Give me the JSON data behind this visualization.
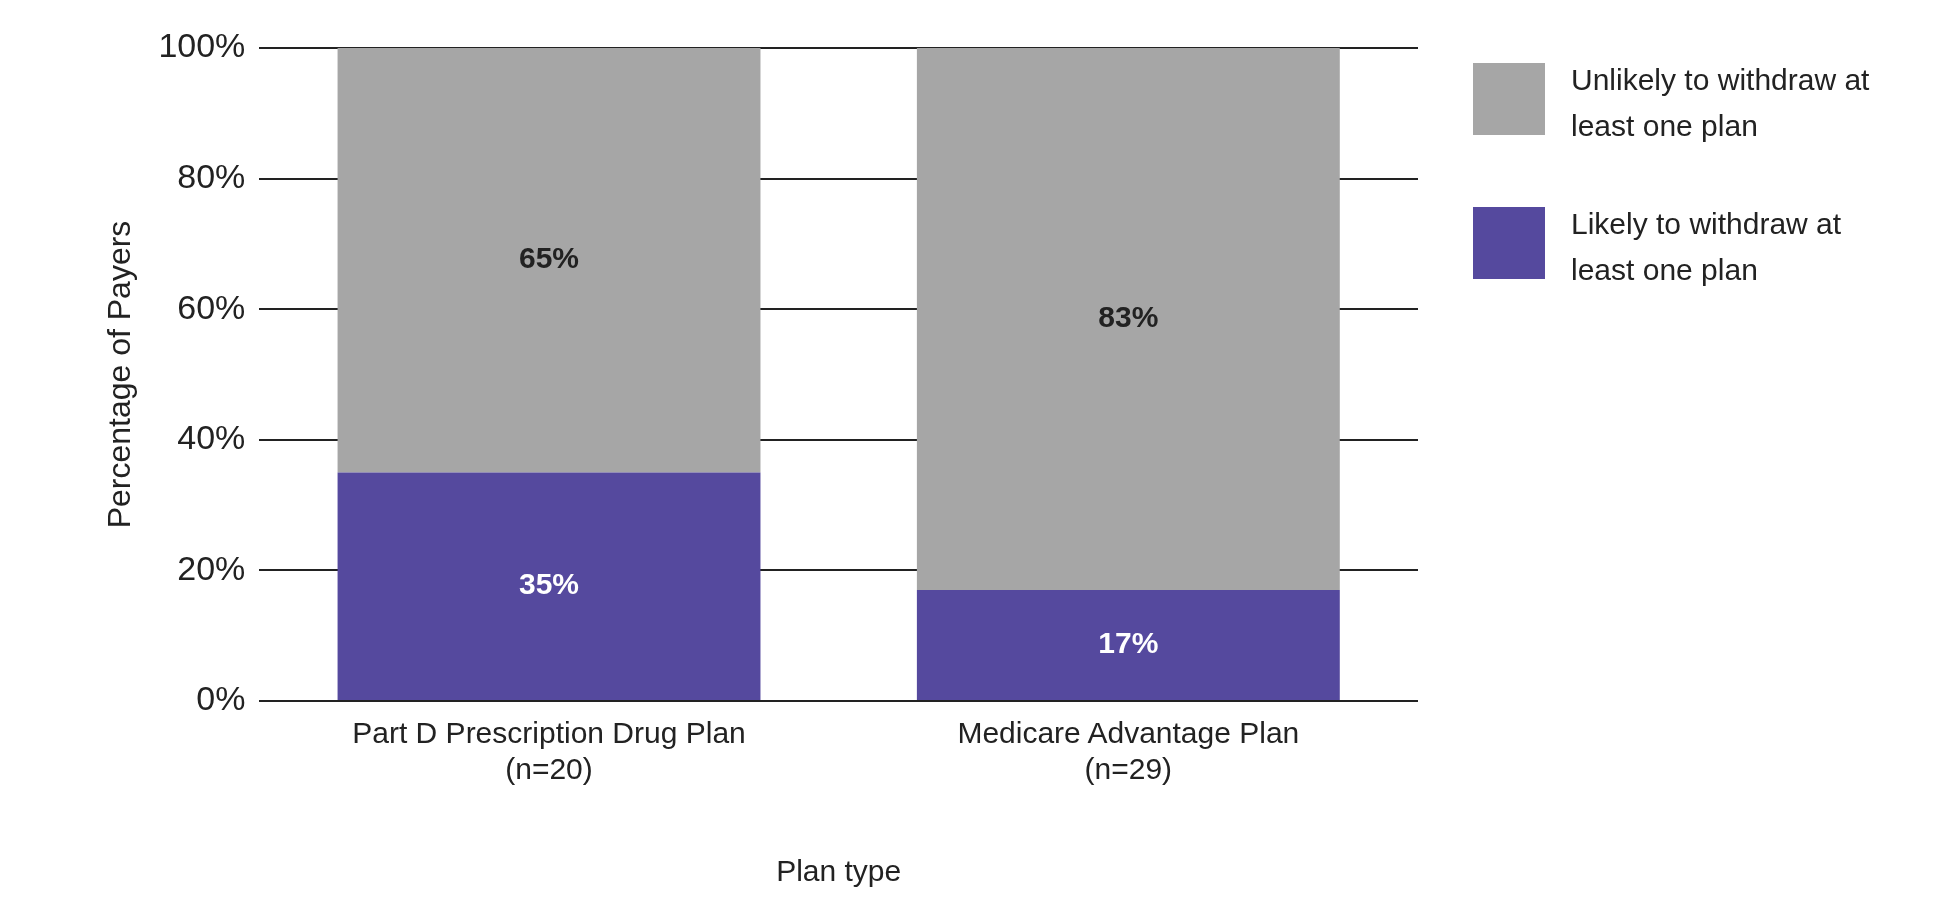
{
  "chart_data": {
    "type": "bar",
    "stacked": true,
    "xlabel": "Plan type",
    "ylabel": "Percentage of Payers",
    "categories": [
      "Part D Prescription Drug Plan\n(n=20)",
      "Medicare Advantage Plan\n(n=29)"
    ],
    "series": [
      {
        "name": "Likely to withdraw at least one plan",
        "color": "#55499e",
        "values": [
          35,
          17
        ],
        "value_labels": [
          "35%",
          "17%"
        ]
      },
      {
        "name": "Unlikely to withdraw at least one plan",
        "color": "#a6a6a6",
        "values": [
          65,
          83
        ],
        "value_labels": [
          "65%",
          "83%"
        ]
      }
    ],
    "ylim": [
      0,
      100
    ],
    "yticks": [
      {
        "value": 0,
        "label": "0%"
      },
      {
        "value": 20,
        "label": "20%"
      },
      {
        "value": 40,
        "label": "40%"
      },
      {
        "value": 60,
        "label": "60%"
      },
      {
        "value": 80,
        "label": "80%"
      },
      {
        "value": 100,
        "label": "100%"
      }
    ],
    "grid": "y",
    "legend": "top right"
  }
}
